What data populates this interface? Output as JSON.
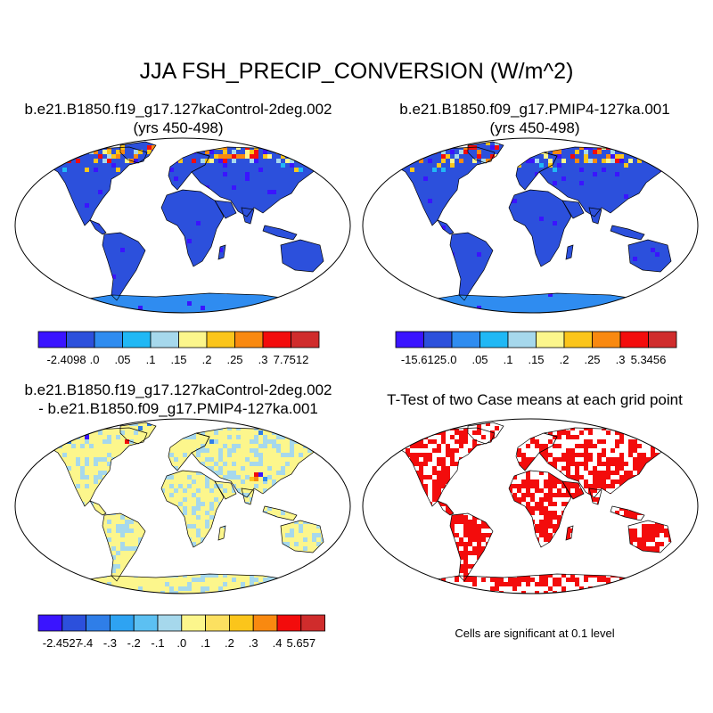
{
  "title": "JJA FSH_PRECIP_CONVERSION (W/m^2)",
  "panels": [
    {
      "id": "case1",
      "title_line1": "b.e21.B1850.f19_g17.127kaControl-2deg.002",
      "title_line2": "(yrs 450-498)",
      "colorbar": {
        "colors": [
          "#3a14ff",
          "#2c50dc",
          "#2f8cf0",
          "#20b8f5",
          "#a6d8ec",
          "#fcf68c",
          "#fbc51b",
          "#f98910",
          "#f30c0c",
          "#d02c2c"
        ],
        "labels": [
          "-2.4098",
          ".0",
          ".05",
          ".1",
          ".15",
          ".2",
          ".25",
          ".3",
          "7.7512"
        ]
      }
    },
    {
      "id": "case2",
      "title_line1": "b.e21.B1850.f09_g17.PMIP4-127ka.001",
      "title_line2": "(yrs 450-498)",
      "colorbar": {
        "colors": [
          "#3a14ff",
          "#2c50dc",
          "#2f8cf0",
          "#20b8f5",
          "#a6d8ec",
          "#fcf68c",
          "#fbc51b",
          "#f98910",
          "#f30c0c",
          "#d02c2c"
        ],
        "labels": [
          "-15.6125",
          ".0",
          ".05",
          ".1",
          ".15",
          ".2",
          ".25",
          ".3",
          "5.3456"
        ]
      }
    },
    {
      "id": "difference",
      "title_line1": "b.e21.B1850.f19_g17.127kaControl-2deg.002",
      "title_line2": "- b.e21.B1850.f09_g17.PMIP4-127ka.001",
      "colorbar": {
        "colors": [
          "#3a14ff",
          "#2c50dc",
          "#2f7ee8",
          "#2ea3f2",
          "#5cc0f2",
          "#a6d8ec",
          "#fcf68c",
          "#fce060",
          "#fbc51b",
          "#f98910",
          "#f30c0c",
          "#d02c2c"
        ],
        "labels": [
          "-2.4527",
          "-.4",
          "-.3",
          "-.2",
          "-.1",
          ".0",
          ".1",
          ".2",
          ".3",
          ".4",
          "5.657"
        ]
      }
    },
    {
      "id": "ttest",
      "title_line1": "T-Test of two Case means at each grid point",
      "note": "Cells are significant at 0.1 level"
    }
  ],
  "map_colors": {
    "ocean": "#ffffff",
    "case_land": "#2c50dc",
    "case_ice": "#2f8cf0",
    "diff_land": "#fcf68c",
    "diff_light": "#a6d8ec",
    "sig": "#f30c0c",
    "coast": "#000000"
  }
}
